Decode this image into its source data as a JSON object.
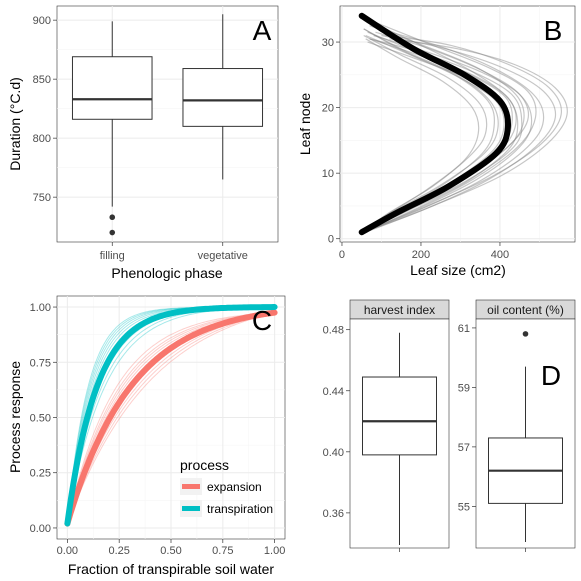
{
  "chart_data": [
    {
      "panel": "A",
      "type": "box",
      "xlabel": "Phenologic phase",
      "ylabel": "Duration (°C.d)",
      "ylim": [
        712,
        912
      ],
      "yticks": [
        750,
        800,
        850,
        900
      ],
      "categories": [
        "filling",
        "vegetative"
      ],
      "boxes": [
        {
          "category": "filling",
          "q1": 816,
          "median": 833,
          "q3": 869,
          "whisker_low": 742,
          "whisker_high": 899,
          "outliers": [
            733,
            720
          ]
        },
        {
          "category": "vegetative",
          "q1": 810,
          "median": 832,
          "q3": 859,
          "whisker_low": 765,
          "whisker_high": 905,
          "outliers": []
        }
      ],
      "grid": true
    },
    {
      "panel": "B",
      "type": "line",
      "xlabel": "Leaf size (cm2)",
      "ylabel": "Leaf node",
      "xlim": [
        -5,
        590
      ],
      "ylim": [
        -0.5,
        35.5
      ],
      "xticks": [
        0,
        200,
        400
      ],
      "yticks": [
        0,
        10,
        20,
        30
      ],
      "series": [
        {
          "role": "mean",
          "color": "#000000",
          "x": [
            50,
            140,
            270,
            390,
            420,
            400,
            310,
            180,
            50
          ],
          "y": [
            1,
            4,
            8,
            13,
            17,
            21,
            25,
            29,
            34
          ]
        },
        {
          "role": "individual",
          "color": "#808080",
          "x": [
            50,
            175,
            310,
            420,
            445,
            420,
            330,
            200,
            75
          ],
          "y": [
            1,
            4.5,
            8.5,
            13.5,
            17.5,
            21.5,
            25.5,
            29.5,
            33
          ]
        },
        {
          "role": "individual",
          "color": "#808080",
          "x": [
            55,
            125,
            245,
            360,
            395,
            375,
            290,
            165,
            55
          ],
          "y": [
            1,
            4,
            8,
            13,
            17,
            21,
            25,
            28.5,
            32
          ]
        },
        {
          "role": "individual",
          "color": "#808080",
          "x": [
            55,
            210,
            370,
            490,
            540,
            510,
            410,
            260,
            100
          ],
          "y": [
            1,
            4.5,
            9,
            14,
            18.5,
            22.5,
            26,
            29,
            31
          ]
        },
        {
          "role": "individual",
          "color": "#808080",
          "x": [
            50,
            150,
            290,
            410,
            470,
            450,
            360,
            220,
            85
          ],
          "y": [
            1,
            4,
            8.5,
            13.5,
            18,
            22,
            25.5,
            29,
            31.5
          ]
        },
        {
          "role": "individual",
          "color": "#808080",
          "x": [
            50,
            120,
            230,
            330,
            365,
            350,
            270,
            150,
            55
          ],
          "y": [
            1,
            4,
            8,
            13,
            16.5,
            20.5,
            24.5,
            28,
            31
          ]
        },
        {
          "role": "individual",
          "color": "#808080",
          "x": [
            55,
            190,
            340,
            450,
            480,
            450,
            350,
            215,
            80
          ],
          "y": [
            1,
            4.5,
            9,
            14,
            18,
            22,
            25.5,
            28.5,
            31
          ]
        },
        {
          "role": "individual",
          "color": "#808080",
          "x": [
            60,
            230,
            400,
            520,
            570,
            540,
            440,
            290,
            120
          ],
          "y": [
            1,
            5,
            9.5,
            14.5,
            19,
            23,
            26.5,
            29,
            30.5
          ]
        },
        {
          "role": "individual",
          "color": "#808080",
          "x": [
            50,
            135,
            260,
            375,
            410,
            390,
            300,
            175,
            60
          ],
          "y": [
            1,
            4,
            8,
            13,
            17,
            21,
            24.5,
            28,
            31
          ]
        },
        {
          "role": "individual",
          "color": "#808080",
          "x": [
            55,
            160,
            300,
            420,
            460,
            440,
            345,
            205,
            70
          ],
          "y": [
            1,
            4.5,
            9,
            14,
            18,
            22,
            26,
            29.5,
            32.5
          ]
        },
        {
          "role": "individual",
          "color": "#808080",
          "x": [
            50,
            110,
            215,
            310,
            345,
            330,
            255,
            145,
            60
          ],
          "y": [
            1,
            3.5,
            7.5,
            12,
            16,
            20,
            24,
            27.5,
            30.5
          ]
        },
        {
          "role": "individual",
          "color": "#808080",
          "x": [
            55,
            200,
            355,
            470,
            510,
            485,
            385,
            240,
            90
          ],
          "y": [
            1,
            4.5,
            9,
            14,
            18,
            22,
            26,
            29.5,
            32
          ]
        },
        {
          "role": "individual",
          "color": "#808080",
          "x": [
            50,
            145,
            275,
            395,
            430,
            415,
            325,
            190,
            65
          ],
          "y": [
            1,
            4,
            8.5,
            13.5,
            17.5,
            21.5,
            25,
            28.5,
            31.5
          ]
        },
        {
          "role": "individual",
          "color": "#808080",
          "x": [
            50,
            170,
            320,
            435,
            455,
            430,
            330,
            195,
            70
          ],
          "y": [
            1,
            4.5,
            9,
            14,
            18,
            22,
            25.5,
            28.5,
            30.5
          ]
        },
        {
          "role": "individual",
          "color": "#808080",
          "x": [
            50,
            130,
            250,
            355,
            385,
            370,
            285,
            160,
            55
          ],
          "y": [
            1,
            4,
            8,
            13,
            17,
            21,
            25,
            28.5,
            32
          ]
        },
        {
          "role": "individual",
          "color": "#808080",
          "x": [
            55,
            185,
            330,
            445,
            490,
            470,
            375,
            230,
            85
          ],
          "y": [
            1,
            4.5,
            9,
            14,
            18.5,
            22.5,
            26,
            29.5,
            33
          ]
        },
        {
          "role": "individual",
          "color": "#808080",
          "x": [
            50,
            155,
            285,
            400,
            440,
            420,
            330,
            195,
            70
          ],
          "y": [
            1,
            4,
            8.5,
            13.5,
            17.5,
            21.5,
            25,
            28,
            30.5
          ]
        },
        {
          "role": "individual",
          "color": "#808080",
          "x": [
            55,
            215,
            380,
            505,
            555,
            525,
            425,
            275,
            110
          ],
          "y": [
            1,
            5,
            9.5,
            14.5,
            19,
            23,
            26.5,
            29.5,
            31
          ]
        },
        {
          "role": "individual",
          "color": "#808080",
          "x": [
            50,
            140,
            265,
            380,
            420,
            405,
            315,
            185,
            65
          ],
          "y": [
            1,
            4,
            8,
            13,
            17,
            21,
            24.5,
            27.5,
            30
          ]
        }
      ],
      "grid": true
    },
    {
      "panel": "C",
      "type": "line",
      "xlabel": "Fraction of transpirable soil water",
      "ylabel": "Process response",
      "xlim": [
        -0.05,
        1.05
      ],
      "ylim": [
        -0.05,
        1.05
      ],
      "xticks": [
        0,
        0.25,
        0.5,
        0.75,
        1
      ],
      "xtick_labels": [
        "0.00",
        "0.25",
        "0.50",
        "0.75",
        "1.00"
      ],
      "yticks": [
        0,
        0.25,
        0.5,
        0.75,
        1
      ],
      "ytick_labels": [
        "0.00",
        "0.25",
        "0.50",
        "0.75",
        "1.00"
      ],
      "legend": {
        "title": "process",
        "placement": "bottom-right",
        "entries": [
          "expansion",
          "transpiration"
        ]
      },
      "series": [
        {
          "name": "expansion",
          "role": "mean",
          "color": "#F8766D",
          "k": 3.2,
          "value_at": {
            "x": [
              0,
              0.25,
              0.5,
              0.75,
              1
            ],
            "y": [
              0.02,
              0.55,
              0.82,
              0.92,
              0.96
            ]
          }
        },
        {
          "name": "transpiration",
          "role": "mean",
          "color": "#00BFC4",
          "k": 7.0,
          "value_at": {
            "x": [
              0,
              0.25,
              0.5,
              0.75,
              1
            ],
            "y": [
              0.02,
              0.86,
              0.98,
              1.0,
              1.0
            ]
          }
        }
      ],
      "spread": {
        "expansion": [
          2.4,
          2.6,
          2.8,
          3.0,
          3.4,
          3.6,
          3.8,
          4.0,
          4.3
        ],
        "transpiration": [
          5.5,
          6.0,
          6.5,
          7.5,
          8.0,
          8.5,
          9.0,
          9.5,
          10.0
        ]
      },
      "grid": true
    },
    {
      "panel": "D",
      "type": "box",
      "facets": [
        {
          "label": "harvest index",
          "ylim": [
            0.337,
            0.487
          ],
          "yticks": [
            0.36,
            0.4,
            0.44,
            0.48
          ],
          "ytick_labels": [
            "0.36",
            "0.40",
            "0.44",
            "0.48"
          ],
          "box": {
            "q1": 0.398,
            "median": 0.42,
            "q3": 0.449,
            "whisker_low": 0.339,
            "whisker_high": 0.478,
            "outliers": []
          }
        },
        {
          "label": "oil content (%)",
          "ylim": [
            53.6,
            61.3
          ],
          "yticks": [
            55,
            57,
            59,
            61
          ],
          "ytick_labels": [
            "55",
            "57",
            "59",
            "61"
          ],
          "box": {
            "q1": 55.1,
            "median": 56.2,
            "q3": 57.3,
            "whisker_low": 53.8,
            "whisker_high": 59.7,
            "outliers": [
              60.8
            ]
          }
        }
      ],
      "grid": false
    }
  ]
}
